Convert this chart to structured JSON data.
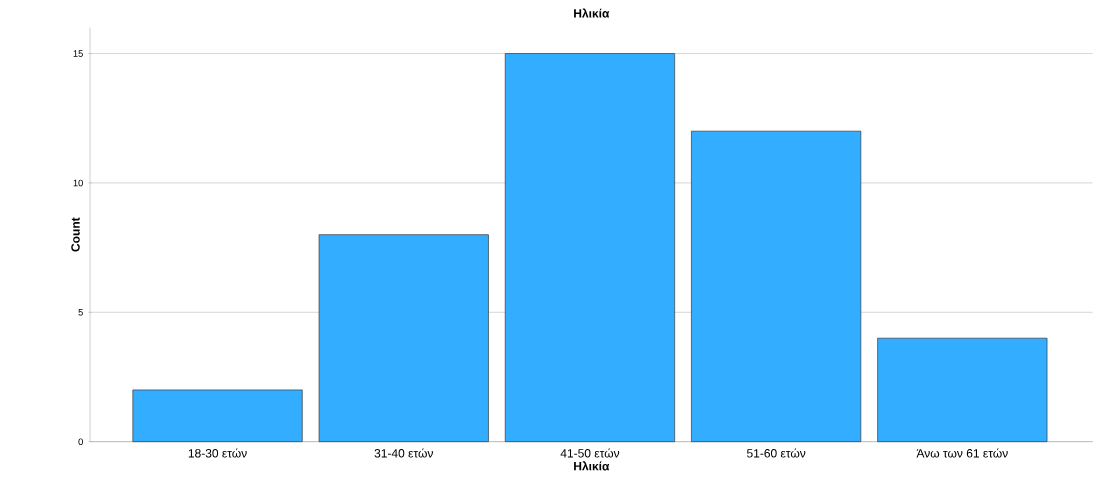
{
  "chart_data": {
    "type": "bar",
    "title": "Ηλικία",
    "xlabel": "Ηλικία",
    "ylabel": "Count",
    "categories": [
      "18-30 ετών",
      "31-40 ετών",
      "41-50 ετών",
      "51-60 ετών",
      "Άνω των 61 ετών"
    ],
    "values": [
      2,
      8,
      15,
      12,
      4
    ],
    "color": "#33adff",
    "ylim": [
      0,
      16
    ],
    "yticks": [
      0,
      5,
      10,
      15
    ],
    "grid": "y"
  }
}
